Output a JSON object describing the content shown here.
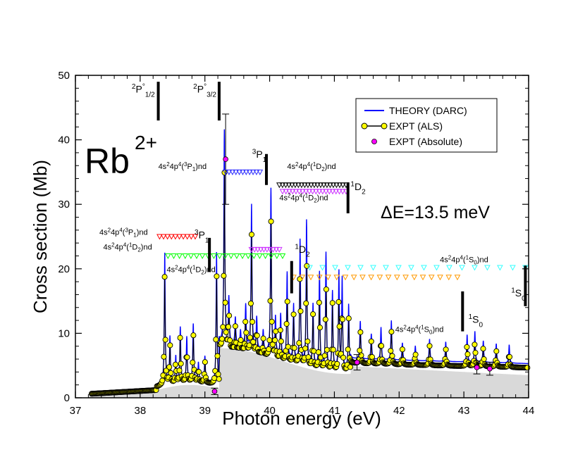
{
  "chart_data": {
    "type": "line",
    "title": "Rb2+",
    "title_base": "Rb",
    "title_sup": "2+",
    "xlabel": "Photon energy (eV)",
    "ylabel": "Cross section (Mb)",
    "xlim": [
      37,
      44
    ],
    "ylim": [
      0,
      50
    ],
    "xticks": [
      37,
      38,
      39,
      40,
      41,
      42,
      43,
      44
    ],
    "yticks": [
      0,
      10,
      20,
      30,
      40,
      50
    ],
    "xtick_labels": [
      "37",
      "38",
      "39",
      "40",
      "41",
      "42",
      "43",
      "44"
    ],
    "ytick_labels": [
      "0",
      "10",
      "20",
      "30",
      "40",
      "50"
    ],
    "resolution_label": "ΔE=13.5 meV",
    "legend": {
      "position": "top-right",
      "entries": [
        "THEORY (DARC)",
        "EXPT (ALS)",
        "EXPT (Absolute)"
      ]
    },
    "colors": {
      "theory": "#0000ff",
      "expt": "#ffff00",
      "absolute": "#ff00ff",
      "fill": "#d9d9d9",
      "red": "#ff0000",
      "green": "#00ff00",
      "blue": "#3030ff",
      "black": "#000000",
      "magenta": "#cc33ff",
      "orange": "#ff9900",
      "cyan": "#33ffff"
    },
    "threshold_bars": [
      {
        "x": 38.28,
        "y0": 43.0,
        "y1": 49.0,
        "label": "2P°1/2"
      },
      {
        "x": 39.22,
        "y0": 43.0,
        "y1": 49.0,
        "label": "2P°3/2"
      },
      {
        "x": 39.95,
        "y0": 33.0,
        "y1": 37.8,
        "label": "3P1"
      },
      {
        "x": 41.21,
        "y0": 28.6,
        "y1": 33.4,
        "label": "1D2 (upper)"
      },
      {
        "x": 39.07,
        "y0": 19.5,
        "y1": 24.8,
        "label": "3P1 (lower)"
      },
      {
        "x": 40.34,
        "y0": 16.2,
        "y1": 21.2,
        "label": "1D2 (lower)"
      },
      {
        "x": 42.98,
        "y0": 10.3,
        "y1": 16.5,
        "label": "1S0 (lower)"
      },
      {
        "x": 43.95,
        "y0": 14.2,
        "y1": 20.5,
        "label": "1S0 (upper)"
      }
    ],
    "threshold_labels": [
      {
        "x": 37.87,
        "y": 47.3,
        "text": "2P°1/2"
      },
      {
        "x": 38.82,
        "y": 47.3,
        "text": "2P°3/2"
      },
      {
        "x": 39.73,
        "y": 37.2,
        "text": "3P1"
      },
      {
        "x": 41.25,
        "y": 32.2,
        "text": "1D2"
      },
      {
        "x": 38.84,
        "y": 24.7,
        "text": "3P1"
      },
      {
        "x": 40.39,
        "y": 22.5,
        "text": "1D2"
      },
      {
        "x": 43.07,
        "y": 11.6,
        "text": "1S0"
      },
      {
        "x": 43.73,
        "y": 15.7,
        "text": "1S0"
      }
    ],
    "series_labels": [
      {
        "x": 38.28,
        "y": 35.5,
        "text": "4s24p4(3P1)nd"
      },
      {
        "x": 40.27,
        "y": 35.5,
        "text": "4s24p4(1D2)nd"
      },
      {
        "x": 40.15,
        "y": 30.6,
        "text": "4s24p4(1D2)nd"
      },
      {
        "x": 37.37,
        "y": 25.3,
        "text": "4s24p4(3P1)nd"
      },
      {
        "x": 37.43,
        "y": 23.0,
        "text": "4s24p4(1D2)nd"
      },
      {
        "x": 38.41,
        "y": 19.5,
        "text": "4s24p4(1D2)nd"
      },
      {
        "x": 41.94,
        "y": 10.2,
        "text": "4s24p4(1S0)nd"
      },
      {
        "x": 42.63,
        "y": 21.0,
        "text": "4s24p4(1S0)nd"
      }
    ],
    "marker_rows": [
      {
        "color": "blue",
        "y": 35.0,
        "x_start": 39.32,
        "x_end": 39.85,
        "n": 11
      },
      {
        "color": "black",
        "y": 33.0,
        "x_start": 40.15,
        "x_end": 41.18,
        "n": 22
      },
      {
        "color": "magenta",
        "y": 32.0,
        "x_start": 40.2,
        "x_end": 41.18,
        "n": 20
      },
      {
        "color": "red",
        "y": 25.0,
        "x_start": 38.3,
        "x_end": 38.85,
        "n": 10
      },
      {
        "color": "green",
        "y": 22.0,
        "x_start": 38.43,
        "x_end": 40.2,
        "n": 21
      },
      {
        "color": "magenta",
        "y": 23.0,
        "x_start": 39.72,
        "x_end": 40.15,
        "n": 10
      },
      {
        "color": "orange",
        "y": 18.7,
        "x_start": 40.37,
        "x_end": 42.9,
        "n": 20
      },
      {
        "color": "cyan",
        "y": 20.2,
        "x_start": 40.62,
        "x_end": 43.95,
        "n": 18
      }
    ],
    "theory_peaks": [
      {
        "x": 38.38,
        "y": 22.0
      },
      {
        "x": 38.46,
        "y": 9.0
      },
      {
        "x": 38.55,
        "y": 6.0
      },
      {
        "x": 38.62,
        "y": 10.5
      },
      {
        "x": 38.72,
        "y": 9.0
      },
      {
        "x": 38.82,
        "y": 11.0
      },
      {
        "x": 38.9,
        "y": 5.0
      },
      {
        "x": 39.0,
        "y": 6.0
      },
      {
        "x": 39.18,
        "y": 22.0
      },
      {
        "x": 39.3,
        "y": 41.0
      },
      {
        "x": 39.37,
        "y": 15.0
      },
      {
        "x": 39.47,
        "y": 12.0
      },
      {
        "x": 39.55,
        "y": 10.0
      },
      {
        "x": 39.63,
        "y": 14.0
      },
      {
        "x": 39.72,
        "y": 29.5
      },
      {
        "x": 39.8,
        "y": 12.0
      },
      {
        "x": 39.9,
        "y": 10.0
      },
      {
        "x": 40.02,
        "y": 32.0
      },
      {
        "x": 40.09,
        "y": 12.0
      },
      {
        "x": 40.17,
        "y": 12.5
      },
      {
        "x": 40.27,
        "y": 19.0
      },
      {
        "x": 40.37,
        "y": 14.0
      },
      {
        "x": 40.47,
        "y": 24.0
      },
      {
        "x": 40.57,
        "y": 27.0
      },
      {
        "x": 40.67,
        "y": 14.0
      },
      {
        "x": 40.77,
        "y": 19.0
      },
      {
        "x": 40.87,
        "y": 22.0
      },
      {
        "x": 40.97,
        "y": 16.0
      },
      {
        "x": 41.07,
        "y": 19.0
      },
      {
        "x": 41.12,
        "y": 18.0
      },
      {
        "x": 41.22,
        "y": 14.0
      },
      {
        "x": 41.4,
        "y": 11.0
      },
      {
        "x": 41.57,
        "y": 9.0
      },
      {
        "x": 41.72,
        "y": 10.0
      },
      {
        "x": 41.88,
        "y": 11.0
      },
      {
        "x": 42.05,
        "y": 7.5
      },
      {
        "x": 42.25,
        "y": 7.0
      },
      {
        "x": 42.47,
        "y": 8.0
      },
      {
        "x": 42.72,
        "y": 7.5
      },
      {
        "x": 43.05,
        "y": 8.5
      },
      {
        "x": 43.17,
        "y": 9.0
      },
      {
        "x": 43.3,
        "y": 7.5
      },
      {
        "x": 43.5,
        "y": 7.0
      },
      {
        "x": 43.7,
        "y": 6.8
      }
    ],
    "absolute_points": [
      {
        "x": 39.15,
        "y": 1.0,
        "err": 0.5
      },
      {
        "x": 39.32,
        "y": 37.0,
        "err": 7.0
      },
      {
        "x": 41.35,
        "y": 5.5,
        "err": 1.2
      },
      {
        "x": 43.2,
        "y": 4.7,
        "err": 1.0
      },
      {
        "x": 43.4,
        "y": 4.5,
        "err": 1.0
      }
    ]
  }
}
